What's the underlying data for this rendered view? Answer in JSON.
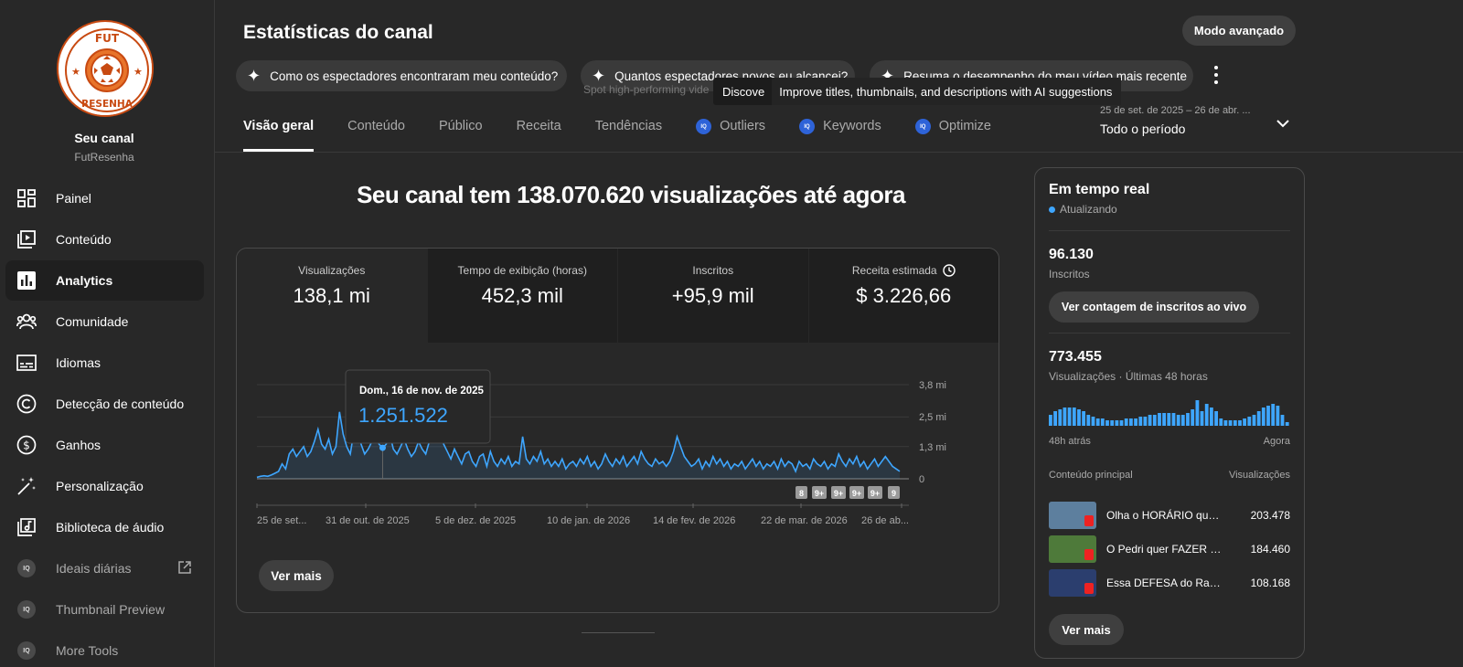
{
  "sidebar": {
    "logo": {
      "top_text": "FUT",
      "bottom_text": "RESENHA"
    },
    "channel_name": "Seu canal",
    "channel_handle": "FutResenha",
    "items": [
      {
        "label": "Painel",
        "icon": "dashboard-icon"
      },
      {
        "label": "Conteúdo",
        "icon": "content-icon"
      },
      {
        "label": "Analytics",
        "icon": "analytics-icon",
        "active": true
      },
      {
        "label": "Comunidade",
        "icon": "community-icon"
      },
      {
        "label": "Idiomas",
        "icon": "subtitles-icon"
      },
      {
        "label": "Detecção de conteúdo",
        "icon": "copyright-icon"
      },
      {
        "label": "Ganhos",
        "icon": "earn-icon"
      },
      {
        "label": "Personalização",
        "icon": "magic-wand-icon"
      },
      {
        "label": "Biblioteca de áudio",
        "icon": "audio-library-icon"
      },
      {
        "label": "Ideais diárias",
        "icon": "iq-icon",
        "external": true
      },
      {
        "label": "Thumbnail Preview",
        "icon": "iq-icon"
      },
      {
        "label": "More Tools",
        "icon": "iq-icon"
      }
    ],
    "iq_badge": "IQ"
  },
  "header": {
    "title": "Estatísticas do canal",
    "advanced_button": "Modo avançado",
    "suggestions": [
      "Como os espectadores encontraram meu conteúdo?",
      "Quantos espectadores novos eu alcancei?",
      "Resuma o desempenho do meu vídeo mais recente"
    ],
    "ghost_text": "Spot high-performing vide",
    "tooltip_left": "Discove",
    "tooltip_right": "Improve titles, thumbnails, and descriptions with AI suggestions"
  },
  "tabs": [
    {
      "label": "Visão geral",
      "active": true
    },
    {
      "label": "Conteúdo"
    },
    {
      "label": "Público"
    },
    {
      "label": "Receita"
    },
    {
      "label": "Tendências"
    },
    {
      "label": "Outliers",
      "iq": true
    },
    {
      "label": "Keywords",
      "iq": true
    },
    {
      "label": "Optimize",
      "iq": true
    }
  ],
  "date_filter": {
    "range": "25 de set. de 2025 – 26 de abr. ...",
    "period": "Todo o período"
  },
  "main": {
    "headline": "Seu canal tem 138.070.620 visualizações até agora",
    "metrics": [
      {
        "label": "Visualizações",
        "value": "138,1 mi",
        "active": true
      },
      {
        "label": "Tempo de exibição (horas)",
        "value": "452,3 mil"
      },
      {
        "label": "Inscritos",
        "value": "+95,9 mil"
      },
      {
        "label": "Receita estimada",
        "value": "$ 3.226,66",
        "clock": true
      }
    ],
    "ver_mais": "Ver mais",
    "tooltip": {
      "date": "Dom., 16 de nov. de 2025",
      "value": "1.251.522"
    },
    "badges": [
      "8",
      "9+",
      "9+",
      "9+",
      "9+",
      "9"
    ]
  },
  "chart_data": {
    "type": "area",
    "ylabel": "",
    "y_ticks": [
      "0",
      "1,3 mi",
      "2,5 mi",
      "3,8 mi"
    ],
    "y_tick_values": [
      0,
      1300000,
      2500000,
      3800000
    ],
    "ylim": [
      0,
      3800000
    ],
    "x_tick_labels": [
      "25 de set...",
      "31 de out. de 2025",
      "5 de dez. de 2025",
      "10 de jan. de 2026",
      "14 de fev. de 2026",
      "22 de mar. de 2026",
      "26 de ab..."
    ],
    "series": [
      {
        "values": [
          60000,
          100000,
          120000,
          100000,
          150000,
          220000,
          300000,
          600000,
          400000,
          1000000,
          1200000,
          900000,
          1100000,
          1300000,
          900000,
          1100000,
          1500000,
          2000000,
          1400000,
          1200000,
          1600000,
          1000000,
          1300000,
          2700000,
          1800000,
          1300000,
          1000000,
          1900000,
          2100000,
          1400000,
          1000000,
          1200000,
          1500000,
          2000000,
          1400000,
          1251522,
          1400000,
          1800000,
          1200000,
          1000000,
          1300000,
          1600000,
          1200000,
          900000,
          1100000,
          1500000,
          1200000,
          1000000,
          1500000,
          2600000,
          3500000,
          2000000,
          1400000,
          1100000,
          800000,
          1200000,
          900000,
          600000,
          1000000,
          1100000,
          700000,
          500000,
          900000,
          1000000,
          500000,
          1100000,
          700000,
          500000,
          800000,
          600000,
          900000,
          500000,
          700000,
          600000,
          1700000,
          800000,
          600000,
          900000,
          700000,
          1100000,
          600000,
          800000,
          500000,
          700000,
          500000,
          800000,
          400000,
          600000,
          700000,
          500000,
          800000,
          600000,
          900000,
          500000,
          700000,
          400000,
          600000,
          1000000,
          700000,
          500000,
          800000,
          600000,
          900000,
          500000,
          700000,
          900000,
          600000,
          1100000,
          800000,
          600000,
          500000,
          800000,
          600000,
          700000,
          500000,
          700000,
          1100000,
          1700000,
          1300000,
          900000,
          700000,
          500000,
          600000,
          800000,
          400000,
          700000,
          500000,
          900000,
          600000,
          800000,
          500000,
          700000,
          400000,
          600000,
          500000,
          700000,
          400000,
          600000,
          800000,
          500000,
          700000,
          400000,
          600000,
          500000,
          700000,
          400000,
          800000,
          500000,
          700000,
          600000,
          300000,
          700000,
          500000,
          600000,
          400000,
          800000,
          600000,
          500000,
          700000,
          400000,
          600000,
          500000,
          1000000,
          700000,
          500000,
          800000,
          600000,
          900000,
          500000,
          700000,
          400000,
          600000,
          800000,
          500000,
          700000,
          900000,
          700000,
          500000,
          400000,
          300000
        ]
      }
    ]
  },
  "realtime": {
    "title": "Em tempo real",
    "status": "Atualizando",
    "subscribers_value": "96.130",
    "subscribers_label": "Inscritos",
    "live_count_button": "Ver contagem de inscritos ao vivo",
    "views_value": "773.455",
    "views_label": "Visualizações · Últimas 48 horas",
    "bars": [
      6,
      8,
      9,
      10,
      10,
      10,
      9,
      8,
      6,
      5,
      4,
      4,
      3,
      3,
      3,
      3,
      4,
      4,
      4,
      5,
      5,
      6,
      6,
      7,
      7,
      7,
      7,
      6,
      6,
      7,
      9,
      14,
      8,
      12,
      10,
      8,
      4,
      3,
      3,
      3,
      3,
      4,
      5,
      6,
      8,
      10,
      11,
      12,
      11,
      6,
      2
    ],
    "axis_left": "48h atrás",
    "axis_right": "Agora",
    "top_content_label": "Conteúdo principal",
    "top_views_label": "Visualizações",
    "videos": [
      {
        "title": "Olha o HORÁRIO que o jogo vai rolar",
        "views": "203.478",
        "thumb_color": "#5d7f9e"
      },
      {
        "title": "O Pedri quer FAZER um gol",
        "views": "184.460",
        "thumb_color": "#4e7a3a"
      },
      {
        "title": "Essa DEFESA do Raphinha",
        "views": "108.168",
        "thumb_color": "#2b3e6e"
      }
    ],
    "more_button": "Ver mais"
  }
}
